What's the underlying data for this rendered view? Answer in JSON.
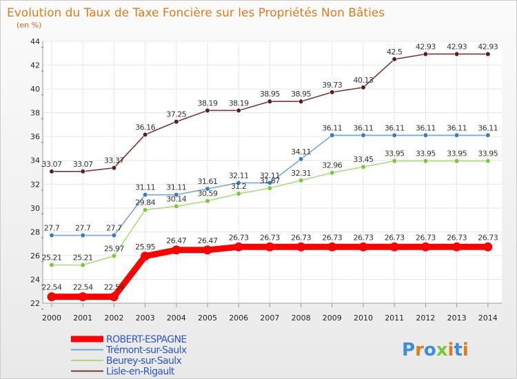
{
  "chart_data": {
    "type": "line",
    "title": "Evolution du Taux de Taxe Foncière sur les Propriétés Non Bâties",
    "subtitle": "(en %)",
    "xlabel": "",
    "ylabel": "",
    "categories": [
      "2000",
      "2001",
      "2002",
      "2003",
      "2004",
      "2005",
      "2006",
      "2007",
      "2008",
      "2009",
      "2010",
      "2011",
      "2012",
      "2013",
      "2014"
    ],
    "ylim": [
      22,
      44
    ],
    "yticks": [
      22,
      24,
      26,
      28,
      30,
      32,
      34,
      36,
      38,
      40,
      42,
      44
    ],
    "grid": true,
    "legend_position": "bottom-left",
    "series": [
      {
        "name": "ROBERT-ESPAGNE",
        "color": "#ff0000",
        "marker_color": "#ff0000",
        "labels": [
          "22.54",
          "22.54",
          "22.54",
          "25.95",
          "26.47",
          "26.47",
          "26.73",
          "26.73",
          "26.73",
          "26.73",
          "26.73",
          "26.73",
          "26.73",
          "26.73",
          "26.73"
        ],
        "values": [
          22.54,
          22.54,
          22.54,
          25.95,
          26.47,
          26.47,
          26.73,
          26.73,
          26.73,
          26.73,
          26.73,
          26.73,
          26.73,
          26.73,
          26.73
        ]
      },
      {
        "name": "Trémont-sur-Saulx",
        "color": "#6ea6d8",
        "marker_color": "#3a7cc4",
        "labels": [
          "27.7",
          "27.7",
          "27.7",
          "31.11",
          "31.11",
          "31.61",
          "32.11",
          "32.11",
          "34.11",
          "36.11",
          "36.11",
          "36.11",
          "36.11",
          "36.11",
          "36.11"
        ],
        "values": [
          27.7,
          27.7,
          27.7,
          31.11,
          31.11,
          31.61,
          32.11,
          32.11,
          34.11,
          36.11,
          36.11,
          36.11,
          36.11,
          36.11,
          36.11
        ]
      },
      {
        "name": "Beurey-sur-Saulx",
        "color": "#a8dc7c",
        "marker_color": "#7cc63c",
        "labels": [
          "25.21",
          "25.21",
          "25.97",
          "29.84",
          "30.14",
          "30.59",
          "31.2",
          "31.67",
          "32.31",
          "32.96",
          "33.45",
          "33.95",
          "33.95",
          "33.95",
          "33.95"
        ],
        "values": [
          25.21,
          25.21,
          25.97,
          29.84,
          30.14,
          30.59,
          31.2,
          31.67,
          32.31,
          32.96,
          33.45,
          33.95,
          33.95,
          33.95,
          33.95
        ]
      },
      {
        "name": "Lisle-en-Rigault",
        "color": "#7a3434",
        "marker_color": "#5a1c1c",
        "labels": [
          "33.07",
          "33.07",
          "33.37",
          "36.16",
          "37.25",
          "38.19",
          "38.19",
          "38.95",
          "38.95",
          "39.73",
          "40.13",
          "42.5",
          "42.93",
          "42.93",
          "42.93"
        ],
        "values": [
          33.07,
          33.07,
          33.37,
          36.16,
          37.25,
          38.19,
          38.19,
          38.95,
          38.95,
          39.73,
          40.13,
          42.5,
          42.93,
          42.93,
          42.93
        ]
      }
    ]
  },
  "watermark": "Proxiti",
  "colors": {
    "title": "#e07b1a",
    "subtitle": "#d0631a",
    "legend_text": "#2a55c8",
    "grid": "#e6e6e6",
    "axis": "#999999",
    "tick_text": "#222222",
    "label_text": "#333333"
  }
}
